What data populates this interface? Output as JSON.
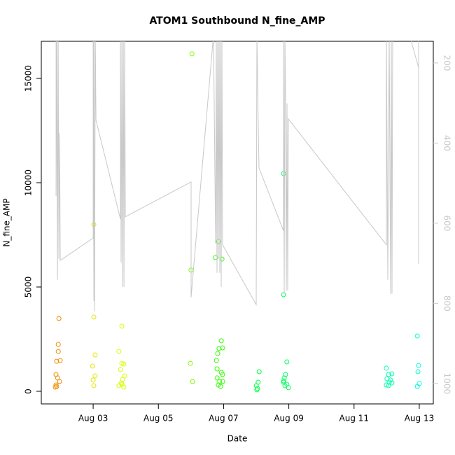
{
  "chart_data": {
    "type": "scatter",
    "title": "ATOM1 Southbound N_fine_AMP",
    "x_label": "Date",
    "y_label": "N_fine_AMP",
    "xlim": [
      1.41,
      13.43
    ],
    "xticks": [
      {
        "value": 3,
        "label": "Aug 03"
      },
      {
        "value": 5,
        "label": "Aug 05"
      },
      {
        "value": 7,
        "label": "Aug 07"
      },
      {
        "value": 9,
        "label": "Aug 09"
      },
      {
        "value": 11,
        "label": "Aug 11"
      },
      {
        "value": 13,
        "label": "Aug 13"
      }
    ],
    "ylim": [
      -604,
      16779
    ],
    "yticks": [
      0,
      5000,
      10000,
      15000
    ],
    "y2lim": [
      1051,
      146
    ],
    "y2ticks": [
      200,
      400,
      600,
      800,
      1000
    ],
    "y2_color": "#c8c8c8",
    "series": [
      {
        "color": "#f08c00",
        "x": [
          1.95,
          1.93,
          1.93,
          1.88,
          1.99,
          1.86,
          1.91,
          1.97,
          1.86,
          1.84,
          1.88
        ],
        "values": [
          3490,
          2250,
          1910,
          1440,
          1475,
          805,
          640,
          470,
          300,
          200,
          230
        ]
      },
      {
        "color": "#e6e600",
        "x": [
          3.02,
          3.02,
          3.06,
          2.98,
          3.06,
          3.0,
          3.02
        ],
        "values": [
          3560,
          7990,
          1745,
          1210,
          740,
          540,
          270
        ]
      },
      {
        "color": "#d4ff00",
        "x": [
          3.88,
          3.79,
          3.88,
          3.94,
          3.84,
          3.97,
          3.9,
          3.86,
          3.79,
          3.94,
          3.88
        ],
        "values": [
          3120,
          1910,
          1340,
          1310,
          1040,
          740,
          570,
          400,
          270,
          200,
          335
        ]
      },
      {
        "color": "#80ff00",
        "x": [
          6.03,
          6.0,
          5.98,
          6.05
        ],
        "values": [
          16180,
          5810,
          1340,
          470
        ]
      },
      {
        "color": "#33ff00",
        "x": [
          6.84,
          6.75,
          6.95,
          6.93,
          6.86,
          6.97,
          6.82,
          6.78,
          6.8,
          6.93,
          6.97,
          6.8,
          6.88,
          6.97,
          6.84,
          6.91
        ],
        "values": [
          7180,
          6410,
          6340,
          2420,
          2050,
          2080,
          1810,
          1475,
          1075,
          905,
          805,
          640,
          470,
          470,
          300,
          235
        ]
      },
      {
        "color": "#00ff40",
        "x": [
          8.09,
          8.06,
          8.0,
          8.04,
          8.02
        ],
        "values": [
          940,
          435,
          270,
          135,
          70
        ]
      },
      {
        "color": "#00ff60",
        "x": [
          8.84,
          8.84,
          8.94,
          8.9,
          8.86,
          8.84,
          8.94,
          8.88,
          8.99,
          8.84
        ],
        "values": [
          10440,
          4630,
          1410,
          805,
          640,
          435,
          335,
          270,
          170,
          500
        ]
      },
      {
        "color": "#00ffb0",
        "x": [
          11.99,
          12.06,
          12.16,
          12.01,
          12.12,
          12.08,
          12.16,
          11.99,
          12.06
        ],
        "values": [
          1110,
          805,
          840,
          605,
          540,
          435,
          400,
          300,
          270
        ]
      },
      {
        "color": "#00ffd8",
        "x": [
          12.94,
          12.98,
          12.96,
          13.0,
          12.94
        ],
        "values": [
          2650,
          1240,
          940,
          370,
          235
        ]
      },
      {
        "color": "#c8c8c8",
        "axis": "y2",
        "x": [
          1.863,
          1.863,
          1.884,
          1.906,
          1.927,
          1.948,
          1.97,
          1.991,
          3.0,
          3.0,
          3.021,
          3.021,
          3.043,
          3.064,
          3.086,
          3.837,
          3.837,
          3.858,
          3.88,
          3.901,
          3.923,
          3.944,
          3.966,
          3.987,
          6.004,
          6.004,
          6.691,
          6.755,
          6.777,
          6.798,
          6.82,
          6.841,
          6.863,
          6.884,
          6.906,
          6.927,
          6.948,
          6.97,
          8.0,
          8.021,
          8.064,
          8.086,
          8.837,
          8.837,
          8.858,
          8.88,
          8.901,
          8.923,
          8.944,
          8.966,
          8.987,
          11.991,
          11.991,
          12.034,
          12.077,
          12.12,
          12.142,
          12.163,
          12.185,
          12.7,
          12.979,
          12.979,
          12.979
        ],
        "values": [
          130,
          532,
          130,
          741,
          130,
          689,
          375,
          693,
          637,
          130,
          794,
          130,
          820,
          130,
          343,
          590,
          130,
          698,
          130,
          759,
          130,
          759,
          130,
          584,
          497,
          785,
          130,
          651,
          130,
          724,
          130,
          689,
          130,
          724,
          130,
          759,
          130,
          654,
          803,
          130,
          362,
          462,
          619,
          130,
          776,
          130,
          305,
          768,
          301,
          768,
          340,
          654,
          130,
          741,
          130,
          776,
          130,
          776,
          130,
          130,
          212,
          701,
          130
        ]
      }
    ]
  }
}
